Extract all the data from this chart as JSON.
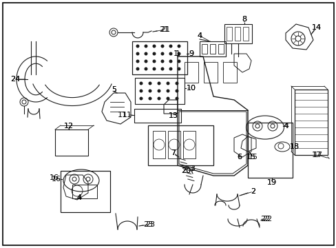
{
  "background_color": "#ffffff",
  "border_color": "#000000",
  "fig_width": 4.89,
  "fig_height": 3.6,
  "dpi": 100,
  "line_color": "#1a1a1a",
  "text_color": "#000000",
  "font_size": 7.5
}
